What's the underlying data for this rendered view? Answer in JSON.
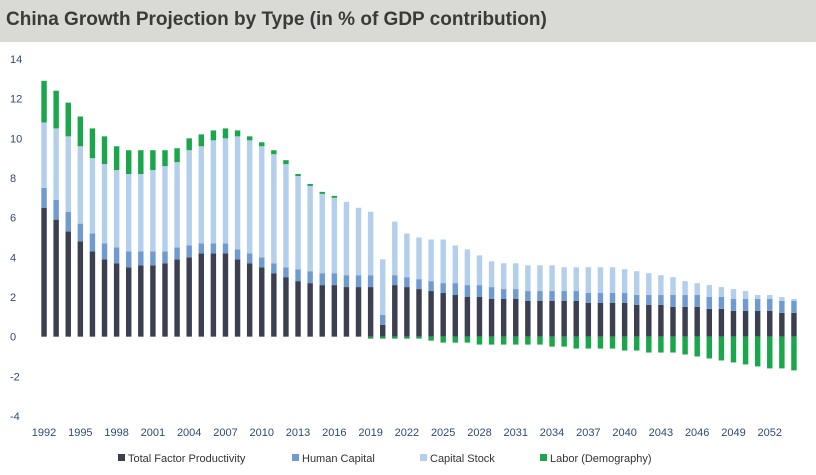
{
  "title": "China Growth Projection by Type (in % of GDP contribution)",
  "chart_data": {
    "type": "bar",
    "stacked": true,
    "title": "China Growth Projection by Type (in % of GDP contribution)",
    "xlabel": "",
    "ylabel": "",
    "ylim": [
      -4,
      14
    ],
    "yticks": [
      -4,
      -2,
      0,
      2,
      4,
      6,
      8,
      10,
      12,
      14
    ],
    "grid": false,
    "legend_position": "bottom",
    "years": [
      1992,
      1993,
      1994,
      1995,
      1996,
      1997,
      1998,
      1999,
      2000,
      2001,
      2002,
      2003,
      2004,
      2005,
      2006,
      2007,
      2008,
      2009,
      2010,
      2011,
      2012,
      2013,
      2014,
      2015,
      2016,
      2017,
      2018,
      2019,
      2020,
      2021,
      2022,
      2023,
      2024,
      2025,
      2026,
      2027,
      2028,
      2029,
      2030,
      2031,
      2032,
      2033,
      2034,
      2035,
      2036,
      2037,
      2038,
      2039,
      2040,
      2041,
      2042,
      2043,
      2044,
      2045,
      2046,
      2047,
      2048,
      2049,
      2050,
      2051,
      2052,
      2053,
      2054
    ],
    "x_tick_labels": [
      "1992",
      "1995",
      "1998",
      "2001",
      "2004",
      "2007",
      "2010",
      "2013",
      "2016",
      "2019",
      "2022",
      "2025",
      "2028",
      "2031",
      "2034",
      "2037",
      "2040",
      "2043",
      "2046",
      "2049",
      "2052"
    ],
    "series": [
      {
        "name": "Total Factor Productivity",
        "color": "#3b3f4f",
        "values": [
          6.5,
          5.9,
          5.3,
          4.8,
          4.3,
          3.9,
          3.7,
          3.5,
          3.6,
          3.6,
          3.7,
          3.9,
          4.0,
          4.2,
          4.2,
          4.2,
          3.9,
          3.7,
          3.5,
          3.2,
          3.0,
          2.8,
          2.7,
          2.6,
          2.6,
          2.5,
          2.5,
          2.5,
          0.6,
          2.6,
          2.5,
          2.4,
          2.3,
          2.2,
          2.1,
          2.0,
          2.0,
          1.9,
          1.9,
          1.9,
          1.8,
          1.8,
          1.8,
          1.8,
          1.8,
          1.7,
          1.7,
          1.7,
          1.7,
          1.6,
          1.6,
          1.6,
          1.5,
          1.5,
          1.5,
          1.4,
          1.4,
          1.3,
          1.3,
          1.3,
          1.3,
          1.2,
          1.2
        ]
      },
      {
        "name": "Human Capital",
        "color": "#6f9bd1",
        "values": [
          1.0,
          1.0,
          1.0,
          0.9,
          0.9,
          0.8,
          0.8,
          0.8,
          0.7,
          0.7,
          0.6,
          0.6,
          0.6,
          0.5,
          0.5,
          0.5,
          0.5,
          0.5,
          0.5,
          0.5,
          0.5,
          0.6,
          0.6,
          0.6,
          0.6,
          0.6,
          0.6,
          0.6,
          0.5,
          0.5,
          0.5,
          0.5,
          0.5,
          0.5,
          0.6,
          0.6,
          0.6,
          0.6,
          0.5,
          0.5,
          0.5,
          0.5,
          0.5,
          0.5,
          0.5,
          0.5,
          0.5,
          0.5,
          0.5,
          0.5,
          0.5,
          0.5,
          0.6,
          0.6,
          0.6,
          0.6,
          0.6,
          0.6,
          0.6,
          0.6,
          0.6,
          0.6,
          0.6
        ]
      },
      {
        "name": "Capital Stock",
        "color": "#b4cfec",
        "values": [
          3.3,
          3.6,
          3.8,
          3.9,
          3.8,
          4.0,
          3.9,
          3.9,
          3.9,
          4.1,
          4.3,
          4.3,
          4.8,
          4.9,
          5.2,
          5.3,
          5.7,
          5.7,
          5.6,
          5.5,
          5.2,
          4.7,
          4.3,
          4.0,
          3.8,
          3.7,
          3.4,
          3.2,
          2.8,
          2.7,
          2.2,
          2.1,
          2.1,
          2.2,
          1.9,
          1.8,
          1.5,
          1.3,
          1.3,
          1.3,
          1.3,
          1.3,
          1.3,
          1.2,
          1.2,
          1.3,
          1.3,
          1.3,
          1.2,
          1.2,
          1.1,
          1.0,
          0.9,
          0.7,
          0.6,
          0.6,
          0.5,
          0.5,
          0.4,
          0.2,
          0.2,
          0.2,
          0.1
        ]
      },
      {
        "name": "Labor (Demography)",
        "color": "#1aa64b",
        "values": [
          2.1,
          1.9,
          1.7,
          1.5,
          1.5,
          1.4,
          1.2,
          1.2,
          1.2,
          1.0,
          0.8,
          0.7,
          0.6,
          0.6,
          0.5,
          0.5,
          0.3,
          0.2,
          0.2,
          0.2,
          0.2,
          0.1,
          0.1,
          0.1,
          0.1,
          0.0,
          0.0,
          -0.1,
          -0.1,
          -0.1,
          -0.1,
          -0.1,
          -0.2,
          -0.3,
          -0.3,
          -0.3,
          -0.4,
          -0.4,
          -0.4,
          -0.4,
          -0.4,
          -0.4,
          -0.5,
          -0.5,
          -0.6,
          -0.6,
          -0.6,
          -0.6,
          -0.7,
          -0.7,
          -0.8,
          -0.8,
          -0.8,
          -0.9,
          -1.0,
          -1.1,
          -1.2,
          -1.3,
          -1.4,
          -1.5,
          -1.6,
          -1.6,
          -1.7
        ]
      }
    ]
  }
}
